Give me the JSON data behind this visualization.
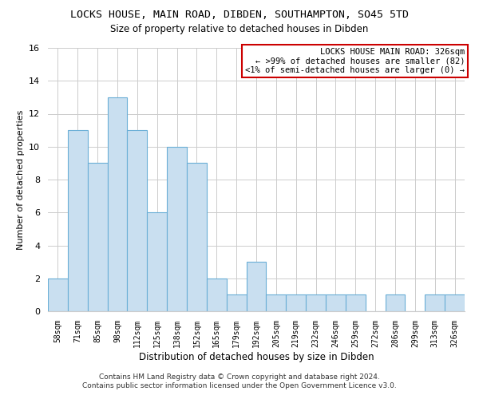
{
  "title": "LOCKS HOUSE, MAIN ROAD, DIBDEN, SOUTHAMPTON, SO45 5TD",
  "subtitle": "Size of property relative to detached houses in Dibden",
  "xlabel": "Distribution of detached houses by size in Dibden",
  "ylabel": "Number of detached properties",
  "categories": [
    "58sqm",
    "71sqm",
    "85sqm",
    "98sqm",
    "112sqm",
    "125sqm",
    "138sqm",
    "152sqm",
    "165sqm",
    "179sqm",
    "192sqm",
    "205sqm",
    "219sqm",
    "232sqm",
    "246sqm",
    "259sqm",
    "272sqm",
    "286sqm",
    "299sqm",
    "313sqm",
    "326sqm"
  ],
  "values": [
    2,
    11,
    9,
    13,
    11,
    6,
    10,
    9,
    2,
    1,
    3,
    1,
    1,
    1,
    1,
    1,
    0,
    1,
    0,
    1,
    1
  ],
  "bar_color": "#c9dff0",
  "bar_edge_color": "#6aaed6",
  "annotation_line1": "LOCKS HOUSE MAIN ROAD: 326sqm",
  "annotation_line2": "← >99% of detached houses are smaller (82)",
  "annotation_line3": "<1% of semi-detached houses are larger (0) →",
  "annotation_box_color": "#cc0000",
  "ylim": [
    0,
    16
  ],
  "yticks": [
    0,
    2,
    4,
    6,
    8,
    10,
    12,
    14,
    16
  ],
  "grid_color": "#cccccc",
  "footer_line1": "Contains HM Land Registry data © Crown copyright and database right 2024.",
  "footer_line2": "Contains public sector information licensed under the Open Government Licence v3.0.",
  "title_fontsize": 9.5,
  "subtitle_fontsize": 8.5,
  "tick_fontsize": 7,
  "ylabel_fontsize": 8,
  "xlabel_fontsize": 8.5,
  "footer_fontsize": 6.5,
  "annotation_fontsize": 7.5
}
